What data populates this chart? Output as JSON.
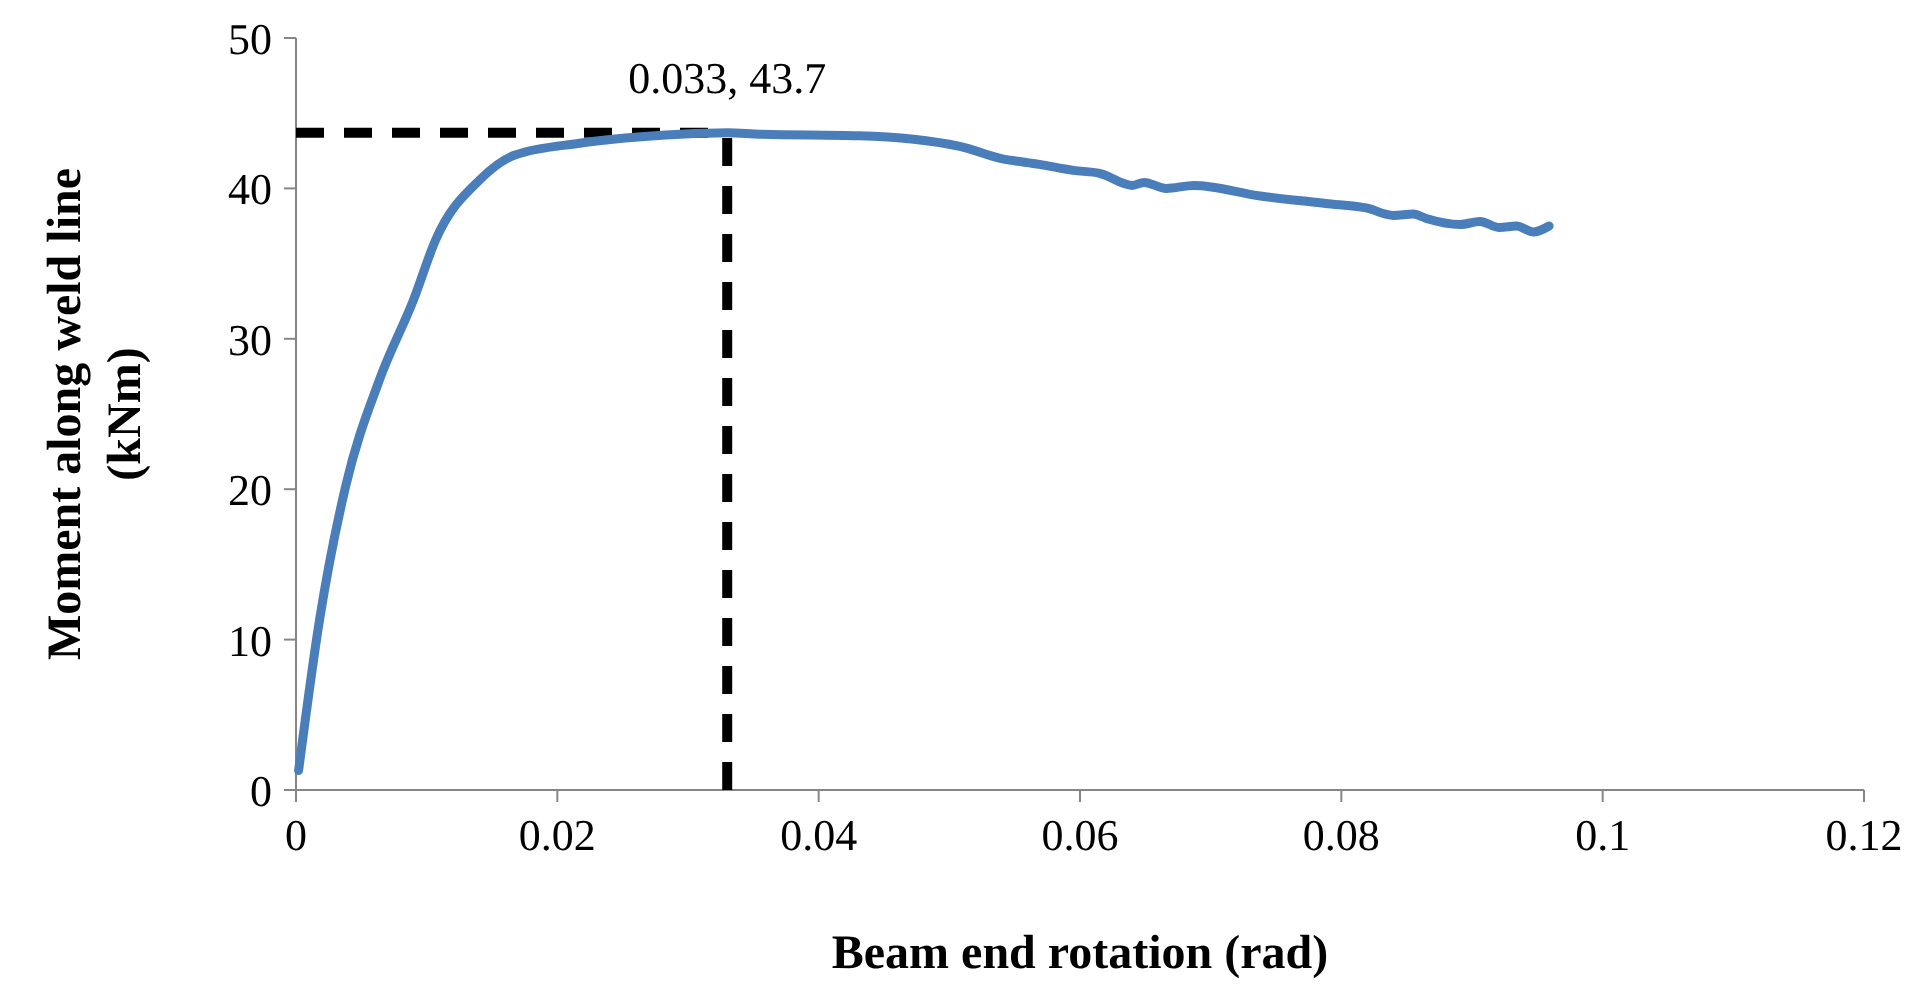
{
  "chart_data": {
    "type": "line",
    "xlabel": "Beam end rotation (rad)",
    "ylabel": "Moment along weld line\n(kNm)",
    "xlim": [
      0,
      0.12
    ],
    "xticks": [
      0,
      0.02,
      0.04,
      0.06,
      0.08,
      0.1,
      0.12
    ],
    "ylim": [
      0,
      50
    ],
    "yticks": [
      0,
      10,
      20,
      30,
      40,
      50
    ],
    "marker": "none",
    "line_style": "solid",
    "series": [
      {
        "color": "#4a7ebb",
        "x": [
          0.0002,
          0.0018,
          0.0038,
          0.0064,
          0.009,
          0.0107,
          0.0141,
          0.0167,
          0.0217,
          0.0294,
          0.033,
          0.0355,
          0.0431,
          0.0508,
          0.0539,
          0.0569,
          0.0595,
          0.0615,
          0.064,
          0.0649,
          0.0666,
          0.0687,
          0.0738,
          0.0788,
          0.0819,
          0.084,
          0.0855,
          0.0865,
          0.0891,
          0.0906,
          0.0921,
          0.0934,
          0.0947,
          0.0959
        ],
        "values": [
          1.3,
          11.3,
          20.2,
          27.3,
          32.6,
          36.6,
          40.6,
          42.2,
          43,
          43.6,
          43.7,
          43.6,
          43.5,
          42.8,
          42,
          41.6,
          41.2,
          41,
          40.2,
          40.4,
          40,
          40.2,
          39.5,
          39,
          38.7,
          38.2,
          38.3,
          38,
          37.6,
          37.8,
          37.4,
          37.5,
          37.1,
          37.5
        ]
      }
    ],
    "ref_lines": [
      {
        "axis": "x",
        "value": 0.033,
        "color": "#000000",
        "line_style": "dashed"
      },
      {
        "axis": "y",
        "value": 43.7,
        "color": "#000000",
        "line_style": "dashed"
      }
    ],
    "annotations": [
      {
        "text": "0.033, 43.7",
        "x": 0.033,
        "y": 43.7
      }
    ]
  }
}
